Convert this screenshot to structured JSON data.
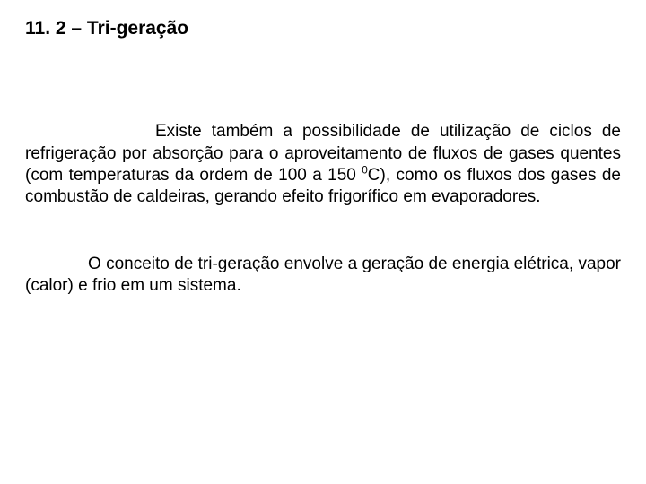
{
  "text_color": "#000000",
  "background_color": "#ffffff",
  "heading": {
    "text": "11. 2 – Tri-geração",
    "font_weight": 700,
    "font_size_pt": 16
  },
  "paragraphs": {
    "p1": {
      "font_size_pt": 14,
      "align": "justify",
      "before_sup": "Existe também a possibilidade de utilização de ciclos de refrigeração por absorção para o aproveitamento de fluxos de gases quentes (com temperaturas da ordem de 100 a 150 ",
      "sup": "0",
      "after_sup": "C), como os fluxos dos gases de combustão de caldeiras, gerando efeito frigorífico em evaporadores."
    },
    "p2": {
      "font_size_pt": 14,
      "align": "justify",
      "text": "O conceito de tri-geração envolve a geração de energia elétrica, vapor (calor) e frio em um sistema."
    }
  }
}
